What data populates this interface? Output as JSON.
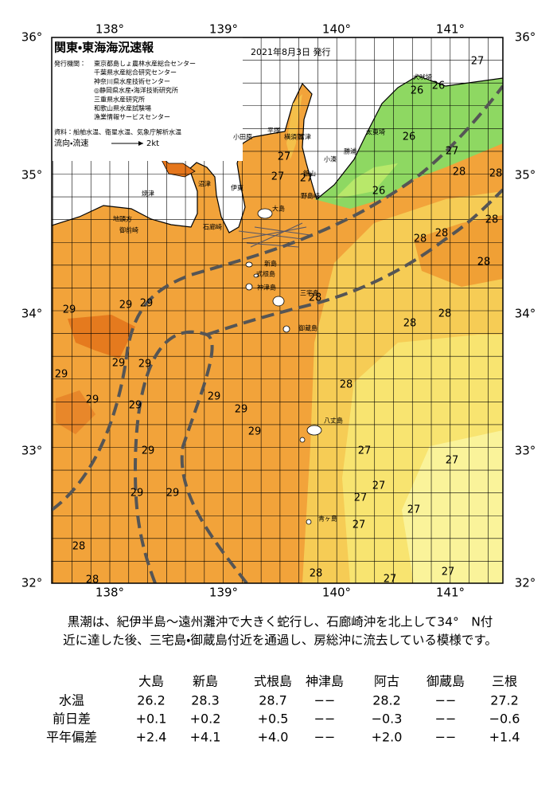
{
  "header": {
    "title": "関東・東海海況速報",
    "date": "2021年8月3日 発行",
    "issuer_label": "発行機関：",
    "issuers": [
      "東京都島しょ農林水産総合センター",
      "千葉県水産総合研究センター",
      "神奈川県水産技術センター",
      "◎静岡県水産・海洋技術研究所",
      "三重県水産研究所",
      "和歌山県水産試験場",
      "漁業情報サービスセンター"
    ],
    "source_label": "資料：",
    "source": "船舶水温、衛星水温、気象庁解析水温",
    "legend_label": "流向・流速",
    "legend_speed": "2kt"
  },
  "map": {
    "lon_labels": [
      "138°",
      "139°",
      "140°",
      "141°"
    ],
    "lat_labels": [
      "36°",
      "35°",
      "34°",
      "33°",
      "32°"
    ],
    "places": [
      "焼津",
      "地頭方",
      "御前崎",
      "沼津",
      "伊東",
      "石廊崎",
      "小田原",
      "平塚",
      "横須賀",
      "富津",
      "館山",
      "野島崎",
      "小湊",
      "勝浦",
      "太東埼",
      "犬吠埼",
      "大島",
      "新島",
      "式根島",
      "神津島",
      "三宅島",
      "御蔵島",
      "八丈島",
      "青ヶ島"
    ],
    "temperatures": [
      27,
      26,
      26,
      26,
      27,
      28,
      28,
      27,
      27,
      27,
      26,
      28,
      28,
      28,
      28,
      28,
      29,
      29,
      29,
      28,
      28,
      29,
      29,
      29,
      28,
      29,
      29,
      29,
      29,
      29,
      29,
      27,
      27,
      29,
      29,
      27,
      27,
      27,
      27,
      28,
      28,
      28,
      27,
      27
    ]
  },
  "summary": [
    "黒潮は、紀伊半島～遠州灘沖で大きく蛇行し、石廊崎沖を北上して34°　N付",
    "近に達した後、三宅島・御蔵島付近を通過し、房総沖に流去している模様です。"
  ],
  "table": {
    "columns": [
      "大島",
      "新島",
      "式根島",
      "神津島",
      "阿古",
      "御蔵島",
      "三根"
    ],
    "rows": [
      {
        "label": "水温",
        "cells": [
          "26.2",
          "28.3",
          "28.7",
          "−−",
          "28.2",
          "−−",
          "27.2"
        ]
      },
      {
        "label": "前日差",
        "cells": [
          "+0.1",
          "+0.2",
          "+0.5",
          "−−",
          "−0.3",
          "−−",
          "−0.6"
        ]
      },
      {
        "label": "平年偏差",
        "cells": [
          "+2.4",
          "+4.1",
          "+4.0",
          "−−",
          "+2.0",
          "−−",
          "+1.4"
        ]
      }
    ]
  }
}
